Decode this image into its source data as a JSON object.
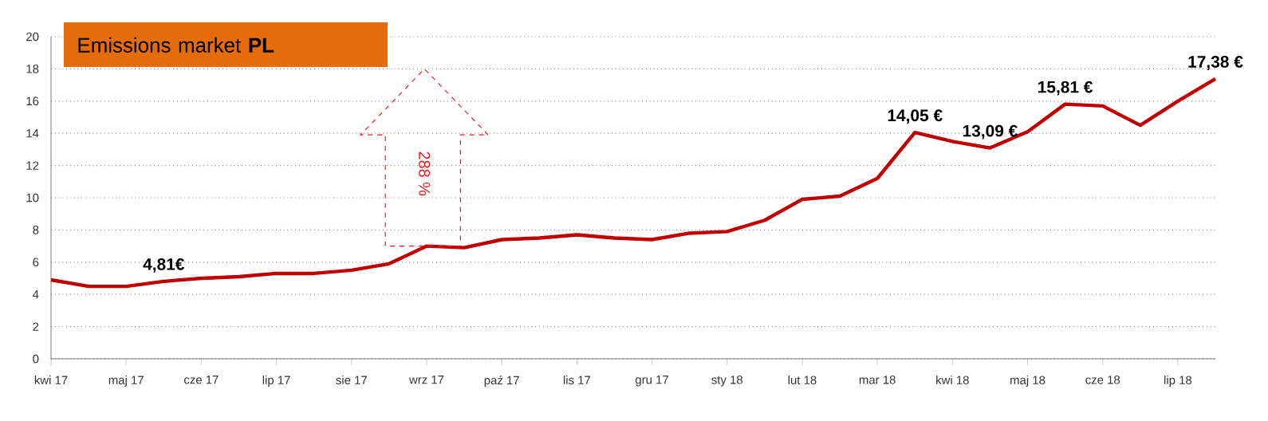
{
  "chart_data": {
    "type": "line",
    "title": "Emissions market **PL**",
    "categories": [
      "kwi 17",
      null,
      "maj 17",
      null,
      "cze 17",
      null,
      "lip 17",
      null,
      "sie 17",
      null,
      "wrz 17",
      null,
      "paź 17",
      null,
      "lis 17",
      null,
      "gru 17",
      null,
      "sty 18",
      null,
      "lut 18",
      null,
      "mar 18",
      null,
      "kwi 18",
      null,
      "maj 18",
      null,
      "cze 18",
      null,
      "lip 18",
      null
    ],
    "series": [
      {
        "color": "#c00000",
        "values": [
          4.9,
          4.5,
          4.5,
          4.81,
          5.0,
          5.1,
          5.3,
          5.3,
          5.5,
          5.9,
          7.0,
          6.9,
          7.4,
          7.5,
          7.7,
          7.5,
          7.4,
          7.8,
          7.9,
          8.6,
          9.9,
          10.1,
          11.2,
          14.05,
          13.5,
          13.09,
          14.1,
          15.81,
          15.7,
          14.5,
          16.0,
          17.38
        ]
      }
    ],
    "ylim": [
      0,
      20
    ],
    "yticks": [
      0,
      2,
      4,
      6,
      8,
      10,
      12,
      14,
      16,
      18,
      20
    ],
    "grid": "y",
    "marker": "none",
    "line_style": "solid",
    "annotations": [
      {
        "text": "4,81€",
        "y": 4.81
      },
      {
        "text": "14,05 €",
        "y": 14.05
      },
      {
        "text": "13,09 €",
        "y": 13.09
      },
      {
        "text": "15,81 €",
        "y": 15.81
      },
      {
        "text": "17,38 €",
        "y": 17.38
      },
      "288 %"
    ]
  }
}
